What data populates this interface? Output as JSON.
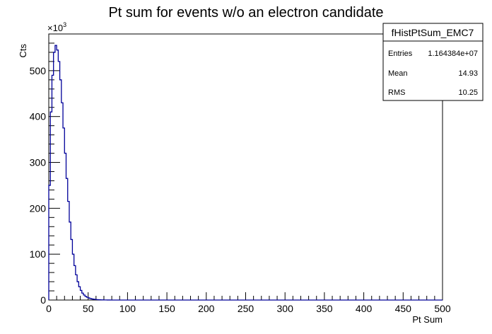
{
  "chart_data": {
    "type": "bar",
    "title": "Pt sum for events w/o an electron candidate",
    "xlabel": "Pt Sum",
    "ylabel": "Cts",
    "y_multiplier": "×10",
    "y_exponent": "3",
    "xlim": [
      0,
      500
    ],
    "ylim": [
      0,
      580
    ],
    "x_ticks": [
      0,
      50,
      100,
      150,
      200,
      250,
      300,
      350,
      400,
      450,
      500
    ],
    "y_ticks": [
      0,
      100,
      200,
      300,
      400,
      500
    ],
    "grid": false,
    "series_color": "#000099",
    "bin_width": 2,
    "x": [
      1,
      3,
      5,
      7,
      9,
      11,
      13,
      15,
      17,
      19,
      21,
      23,
      25,
      27,
      29,
      31,
      33,
      35,
      37,
      39,
      41,
      43,
      45,
      47,
      49,
      51,
      53,
      55,
      57,
      59,
      61,
      63,
      65,
      67,
      69,
      71,
      73,
      75,
      77,
      79
    ],
    "values": [
      250,
      410,
      490,
      540,
      555,
      545,
      520,
      480,
      430,
      375,
      320,
      265,
      215,
      170,
      132,
      100,
      75,
      55,
      40,
      29,
      21,
      15,
      11,
      8,
      6,
      4.5,
      3.3,
      2.4,
      1.8,
      1.3,
      1.0,
      0.7,
      0.5,
      0.4,
      0.3,
      0.2,
      0.15,
      0.1,
      0.08,
      0.05
    ],
    "stats_box": {
      "name": "fHistPtSum_EMC7",
      "rows": [
        {
          "label": "Entries",
          "value": "1.164384e+07"
        },
        {
          "label": "Mean",
          "value": "14.93"
        },
        {
          "label": "RMS",
          "value": "10.25"
        }
      ],
      "placement": "top-right"
    }
  }
}
